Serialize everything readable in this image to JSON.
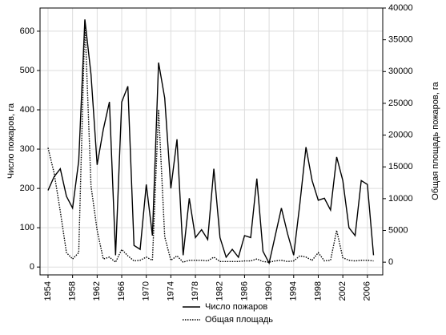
{
  "chart_data": {
    "type": "line",
    "y_label": "Число пожаров, га",
    "y2_label": "Общая площадь пожаров, га",
    "x": [
      1954,
      1955,
      1956,
      1957,
      1958,
      1959,
      1960,
      1961,
      1962,
      1963,
      1964,
      1965,
      1966,
      1967,
      1968,
      1969,
      1970,
      1971,
      1972,
      1973,
      1974,
      1975,
      1976,
      1977,
      1978,
      1979,
      1980,
      1981,
      1982,
      1983,
      1984,
      1985,
      1986,
      1987,
      1988,
      1989,
      1990,
      1991,
      1992,
      1993,
      1994,
      1995,
      1996,
      1997,
      1998,
      1999,
      2000,
      2001,
      2002,
      2003,
      2004,
      2005,
      2006,
      2007
    ],
    "series": [
      {
        "name": "Число пожаров",
        "color": "#000000",
        "dash": "solid",
        "values": [
          195,
          230,
          250,
          180,
          150,
          270,
          630,
          490,
          260,
          350,
          420,
          30,
          420,
          460,
          55,
          45,
          210,
          80,
          520,
          430,
          200,
          325,
          30,
          175,
          75,
          95,
          70,
          250,
          75,
          25,
          45,
          25,
          80,
          75,
          225,
          40,
          10,
          80,
          150,
          85,
          30,
          160,
          305,
          220,
          170,
          175,
          145,
          280,
          220,
          100,
          80,
          220,
          210,
          30
        ]
      },
      {
        "name": "Общая площадь",
        "color": "#000000",
        "dash": "dotted",
        "axis": "y2",
        "values": [
          18000,
          14000,
          8000,
          1500,
          500,
          1500,
          38000,
          12000,
          5000,
          500,
          800,
          0,
          2000,
          1000,
          200,
          300,
          800,
          300,
          24000,
          4000,
          300,
          1000,
          0,
          300,
          300,
          300,
          200,
          800,
          100,
          100,
          100,
          100,
          200,
          200,
          500,
          100,
          0,
          200,
          300,
          100,
          200,
          1000,
          800,
          300,
          1500,
          200,
          300,
          5000,
          700,
          300,
          200,
          300,
          300,
          200
        ]
      }
    ],
    "xlim": [
      1952.7,
      2008.5
    ],
    "xticks": [
      1954,
      1958,
      1962,
      1966,
      1970,
      1974,
      1978,
      1982,
      1986,
      1990,
      1994,
      1998,
      2002,
      2006
    ],
    "ylim": [
      -20,
      659
    ],
    "yticks": [
      0,
      100,
      200,
      300,
      400,
      500,
      600
    ],
    "y2lim": [
      -2000,
      40000
    ],
    "y2ticks": [
      0,
      5000,
      10000,
      15000,
      20000,
      25000,
      30000,
      35000,
      40000
    ],
    "grid": true
  }
}
